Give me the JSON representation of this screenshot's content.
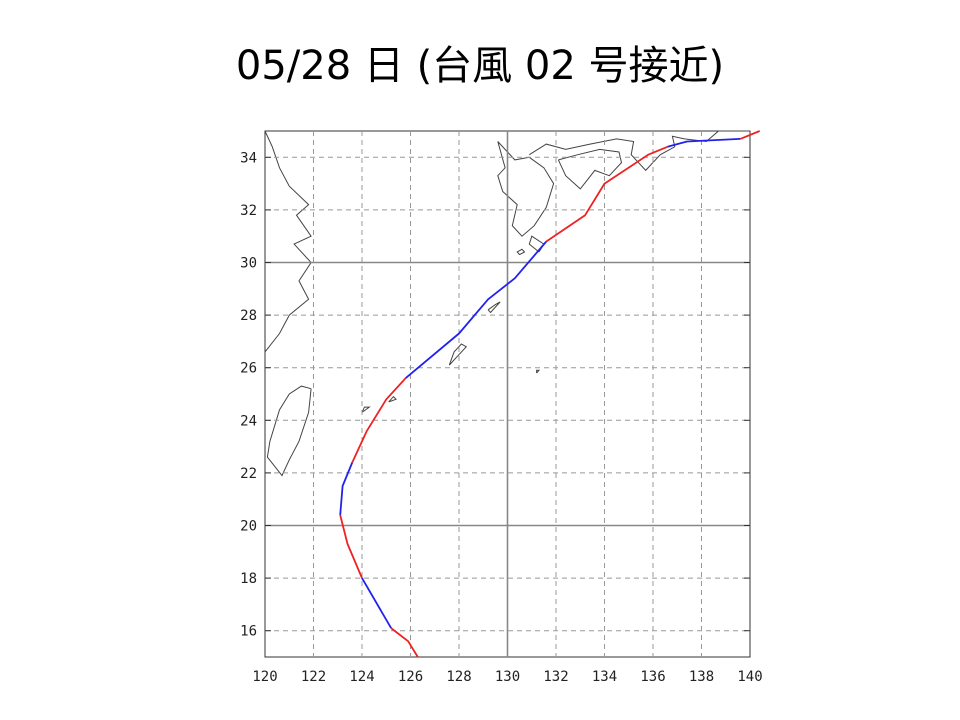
{
  "slide": {
    "title": "05/28 日 (台風 02 号接近)"
  },
  "map": {
    "lon_range": [
      120,
      140
    ],
    "lat_range": [
      15,
      35
    ],
    "x_ticks": [
      120,
      122,
      124,
      126,
      128,
      130,
      132,
      134,
      136,
      138,
      140
    ],
    "y_ticks": [
      16,
      18,
      20,
      22,
      24,
      26,
      28,
      30,
      32,
      34
    ],
    "grid": "dashed every 2°, solid at 130°E and 20°N/30°N",
    "colors": {
      "track_red": "#ee2222",
      "track_blue": "#2222ee",
      "coast": "#444444",
      "grid": "#999999"
    },
    "track_segments": [
      {
        "color": "red",
        "points": [
          [
            126.3,
            15.0
          ],
          [
            125.9,
            15.6
          ],
          [
            125.2,
            16.1
          ]
        ]
      },
      {
        "color": "blue",
        "points": [
          [
            125.2,
            16.1
          ],
          [
            124.0,
            18.0
          ]
        ]
      },
      {
        "color": "red",
        "points": [
          [
            124.0,
            18.0
          ],
          [
            123.4,
            19.3
          ],
          [
            123.1,
            20.4
          ]
        ]
      },
      {
        "color": "blue",
        "points": [
          [
            123.1,
            20.4
          ],
          [
            123.2,
            21.5
          ],
          [
            123.6,
            22.4
          ]
        ]
      },
      {
        "color": "red",
        "points": [
          [
            123.6,
            22.4
          ],
          [
            124.2,
            23.6
          ],
          [
            125.0,
            24.8
          ],
          [
            125.8,
            25.6
          ]
        ]
      },
      {
        "color": "blue",
        "points": [
          [
            125.8,
            25.6
          ],
          [
            128.0,
            27.3
          ],
          [
            129.2,
            28.6
          ],
          [
            130.3,
            29.4
          ],
          [
            131.6,
            30.8
          ]
        ]
      },
      {
        "color": "red",
        "points": [
          [
            131.6,
            30.8
          ],
          [
            133.2,
            31.8
          ],
          [
            134.0,
            33.0
          ],
          [
            135.8,
            34.1
          ],
          [
            136.6,
            34.4
          ]
        ]
      },
      {
        "color": "blue",
        "points": [
          [
            136.6,
            34.4
          ],
          [
            137.4,
            34.6
          ],
          [
            139.6,
            34.7
          ]
        ]
      },
      {
        "color": "red",
        "points": [
          [
            139.6,
            34.7
          ],
          [
            140.4,
            35.0
          ]
        ]
      }
    ]
  }
}
